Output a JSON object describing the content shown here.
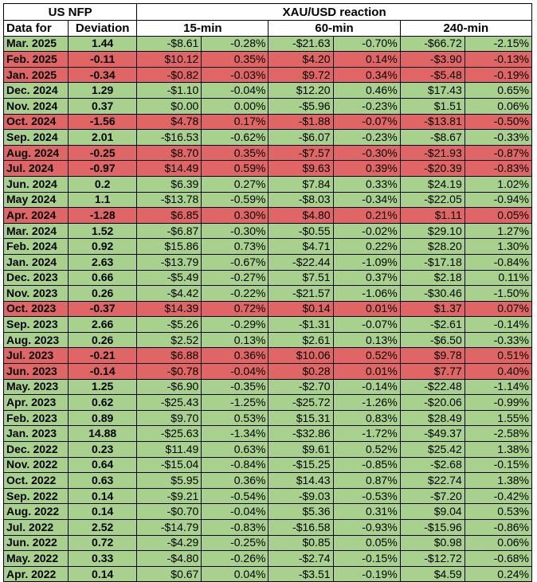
{
  "header": {
    "nfp": "US NFP",
    "reaction": "XAU/USD reaction",
    "data_for": "Data for",
    "deviation": "Deviation",
    "m15": "15-min",
    "m60": "60-min",
    "m240": "240-min"
  },
  "colors": {
    "positive": "#a9d18e",
    "negative": "#e06666"
  },
  "rows": [
    {
      "date": "Mar. 2025",
      "dev": "1.44",
      "a": "-$8.61",
      "ap": "-0.28%",
      "b": "-$21.63",
      "bp": "-0.70%",
      "c": "-$66.72",
      "cp": "-2.15%",
      "neg": false
    },
    {
      "date": "Feb. 2025",
      "dev": "-0.11",
      "a": "$10.12",
      "ap": "0.35%",
      "b": "$4.20",
      "bp": "0.14%",
      "c": "-$3.90",
      "cp": "-0.13%",
      "neg": true
    },
    {
      "date": "Jan. 2025",
      "dev": "-0.34",
      "a": "-$0.82",
      "ap": "-0.03%",
      "b": "$9.72",
      "bp": "0.34%",
      "c": "-$5.48",
      "cp": "-0.19%",
      "neg": true
    },
    {
      "date": "Dec. 2024",
      "dev": "1.29",
      "a": "-$1.10",
      "ap": "-0.04%",
      "b": "$12.20",
      "bp": "0.46%",
      "c": "$17.43",
      "cp": "0.65%",
      "neg": false
    },
    {
      "date": "Nov. 2024",
      "dev": "0.37",
      "a": "$0.00",
      "ap": "0.00%",
      "b": "-$5.96",
      "bp": "-0.23%",
      "c": "$1.51",
      "cp": "0.06%",
      "neg": false
    },
    {
      "date": "Oct. 2024",
      "dev": "-1.56",
      "a": "$4.78",
      "ap": "0.17%",
      "b": "-$1.88",
      "bp": "-0.07%",
      "c": "-$13.81",
      "cp": "-0.50%",
      "neg": true
    },
    {
      "date": "Sep. 2024",
      "dev": "2.01",
      "a": "-$16.53",
      "ap": "-0.62%",
      "b": "-$6.07",
      "bp": "-0.23%",
      "c": "-$8.67",
      "cp": "-0.33%",
      "neg": false
    },
    {
      "date": "Aug. 2024",
      "dev": "-0.25",
      "a": "$8.70",
      "ap": "0.35%",
      "b": "-$7.57",
      "bp": "-0.30%",
      "c": "-$21.93",
      "cp": "-0.87%",
      "neg": true
    },
    {
      "date": "Jul. 2024",
      "dev": "-0.97",
      "a": "$14.49",
      "ap": "0.59%",
      "b": "$9.63",
      "bp": "0.39%",
      "c": "-$20.39",
      "cp": "-0.83%",
      "neg": true
    },
    {
      "date": "Jun. 2024",
      "dev": "0.2",
      "a": "$6.39",
      "ap": "0.27%",
      "b": "$7.84",
      "bp": "0.33%",
      "c": "$24.19",
      "cp": "1.02%",
      "neg": false
    },
    {
      "date": "May 2024",
      "dev": "1.1",
      "a": "-$13.78",
      "ap": "-0.59%",
      "b": "-$8.03",
      "bp": "-0.34%",
      "c": "-$22.05",
      "cp": "-0.94%",
      "neg": false
    },
    {
      "date": "Apr. 2024",
      "dev": "-1.28",
      "a": "$6.85",
      "ap": "0.30%",
      "b": "$4.80",
      "bp": "0.21%",
      "c": "$1.11",
      "cp": "0.05%",
      "neg": true
    },
    {
      "date": "Mar. 2024",
      "dev": "1.52",
      "a": "-$6.87",
      "ap": "-0.30%",
      "b": "-$0.55",
      "bp": "-0.02%",
      "c": "$29.10",
      "cp": "1.27%",
      "neg": false
    },
    {
      "date": "Feb. 2024",
      "dev": "0.92",
      "a": "$15.86",
      "ap": "0.73%",
      "b": "$4.71",
      "bp": "0.22%",
      "c": "$28.20",
      "cp": "1.30%",
      "neg": false
    },
    {
      "date": "Jan. 2024",
      "dev": "2.63",
      "a": "-$13.79",
      "ap": "-0.67%",
      "b": "-$22.44",
      "bp": "-1.09%",
      "c": "-$17.18",
      "cp": "-0.84%",
      "neg": false
    },
    {
      "date": "Dec. 2023",
      "dev": "0.66",
      "a": "-$5.49",
      "ap": "-0.27%",
      "b": "$7.51",
      "bp": "0.37%",
      "c": "$2.18",
      "cp": "0.11%",
      "neg": false
    },
    {
      "date": "Nov. 2023",
      "dev": "0.26",
      "a": "-$4.42",
      "ap": "-0.22%",
      "b": "-$21.57",
      "bp": "-1.06%",
      "c": "-$30.46",
      "cp": "-1.50%",
      "neg": false
    },
    {
      "date": "Oct. 2023",
      "dev": "-0.37",
      "a": "$14.39",
      "ap": "0.72%",
      "b": "$0.14",
      "bp": "0.01%",
      "c": "$1.37",
      "cp": "0.07%",
      "neg": true
    },
    {
      "date": "Sep. 2023",
      "dev": "2.66",
      "a": "-$5.26",
      "ap": "-0.29%",
      "b": "-$1.31",
      "bp": "-0.07%",
      "c": "-$2.61",
      "cp": "-0.14%",
      "neg": false
    },
    {
      "date": "Aug. 2023",
      "dev": "0.26",
      "a": "$2.52",
      "ap": "0.13%",
      "b": "$2.61",
      "bp": "0.13%",
      "c": "-$6.50",
      "cp": "-0.33%",
      "neg": false
    },
    {
      "date": "Jul. 2023",
      "dev": "-0.21",
      "a": "$6.88",
      "ap": "0.36%",
      "b": "$10.06",
      "bp": "0.52%",
      "c": "$9.78",
      "cp": "0.51%",
      "neg": true
    },
    {
      "date": "Jun. 2023",
      "dev": "-0.14",
      "a": "-$0.78",
      "ap": "-0.04%",
      "b": "$0.28",
      "bp": "0.01%",
      "c": "$7.77",
      "cp": "0.40%",
      "neg": true
    },
    {
      "date": "May. 2023",
      "dev": "1.25",
      "a": "-$6.90",
      "ap": "-0.35%",
      "b": "-$2.70",
      "bp": "-0.14%",
      "c": "-$22.48",
      "cp": "-1.14%",
      "neg": false
    },
    {
      "date": "Apr. 2023",
      "dev": "0.62",
      "a": "-$25.43",
      "ap": "-1.25%",
      "b": "-$25.72",
      "bp": "-1.26%",
      "c": "-$20.06",
      "cp": "-0.99%",
      "neg": false
    },
    {
      "date": "Feb. 2023",
      "dev": "0.89",
      "a": "$9.70",
      "ap": "0.53%",
      "b": "$15.31",
      "bp": "0.83%",
      "c": "$28.49",
      "cp": "1.55%",
      "neg": false
    },
    {
      "date": "Jan. 2023",
      "dev": "14.88",
      "a": "-$25.63",
      "ap": "-1.34%",
      "b": "-$32.86",
      "bp": "-1.72%",
      "c": "-$49.37",
      "cp": "-2.58%",
      "neg": false
    },
    {
      "date": "Dec. 2022",
      "dev": "0.23",
      "a": "$11.49",
      "ap": "0.63%",
      "b": "$9.61",
      "bp": "0.52%",
      "c": "$25.42",
      "cp": "1.38%",
      "neg": false
    },
    {
      "date": "Nov. 2022",
      "dev": "0.64",
      "a": "-$15.04",
      "ap": "-0.84%",
      "b": "-$15.25",
      "bp": "-0.85%",
      "c": "-$2.68",
      "cp": "-0.15%",
      "neg": false
    },
    {
      "date": "Oct. 2022",
      "dev": "0.63",
      "a": "$5.95",
      "ap": "0.36%",
      "b": "$14.43",
      "bp": "0.87%",
      "c": "$22.74",
      "cp": "1.38%",
      "neg": false
    },
    {
      "date": "Sep. 2022",
      "dev": "0.14",
      "a": "-$9.21",
      "ap": "-0.54%",
      "b": "-$9.03",
      "bp": "-0.53%",
      "c": "-$7.20",
      "cp": "-0.42%",
      "neg": false
    },
    {
      "date": "Aug. 2022",
      "dev": "0.14",
      "a": "-$0.70",
      "ap": "-0.04%",
      "b": "$5.36",
      "bp": "0.31%",
      "c": "$9.04",
      "cp": "0.53%",
      "neg": false
    },
    {
      "date": "Jul. 2022",
      "dev": "2.52",
      "a": "-$14.79",
      "ap": "-0.83%",
      "b": "-$16.58",
      "bp": "-0.93%",
      "c": "-$15.96",
      "cp": "-0.86%",
      "neg": false
    },
    {
      "date": "Jun. 2022",
      "dev": "0.72",
      "a": "-$4.29",
      "ap": "-0.25%",
      "b": "$0.85",
      "bp": "0.05%",
      "c": "$0.98",
      "cp": "0.06%",
      "neg": false
    },
    {
      "date": "May. 2022",
      "dev": "0.33",
      "a": "-$4.80",
      "ap": "-0.26%",
      "b": "-$2.74",
      "bp": "-0.15%",
      "c": "-$12.72",
      "cp": "-0.68%",
      "neg": false
    },
    {
      "date": "Apr. 2022",
      "dev": "0.14",
      "a": "$0.67",
      "ap": "0.04%",
      "b": "-$3.51",
      "bp": "-0.19%",
      "c": "$4.59",
      "cp": "0.24%",
      "neg": false
    }
  ]
}
